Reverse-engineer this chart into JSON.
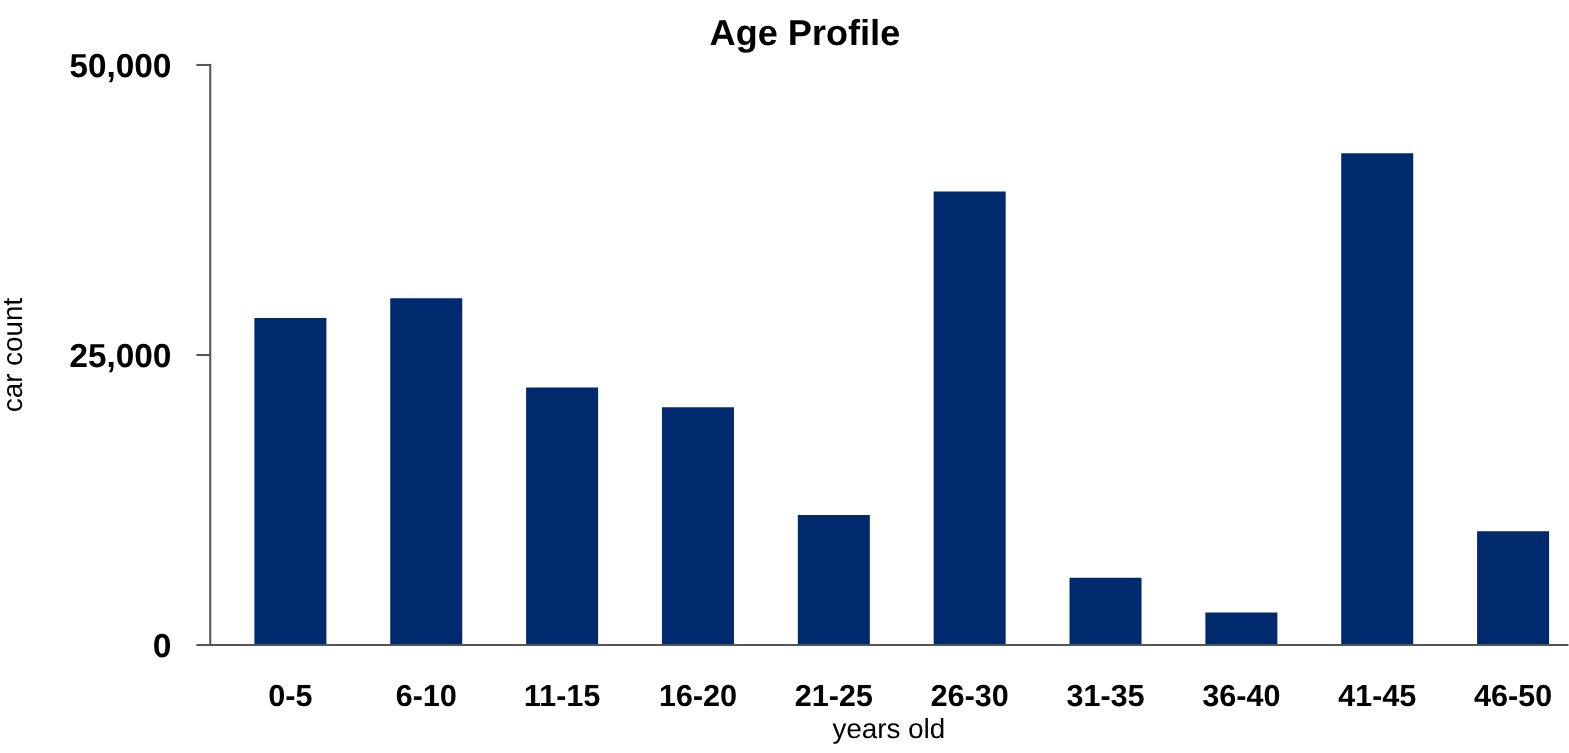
{
  "chart_data": {
    "type": "bar",
    "title": "Age Profile",
    "xlabel": "years old",
    "ylabel": "car count",
    "categories": [
      "0-5",
      "6-10",
      "11-15",
      "16-20",
      "21-25",
      "26-30",
      "31-35",
      "36-40",
      "41-45",
      "46-50"
    ],
    "values": [
      28200,
      29900,
      22200,
      20500,
      11200,
      39100,
      5800,
      2800,
      42400,
      9800
    ],
    "color": "#002a6e",
    "ylim": [
      0,
      50000
    ],
    "yticks": [
      {
        "value": 0,
        "label": "0"
      },
      {
        "value": 25000,
        "label": "25,000"
      },
      {
        "value": 50000,
        "label": "50,000"
      }
    ],
    "grid": false,
    "legend": false
  }
}
